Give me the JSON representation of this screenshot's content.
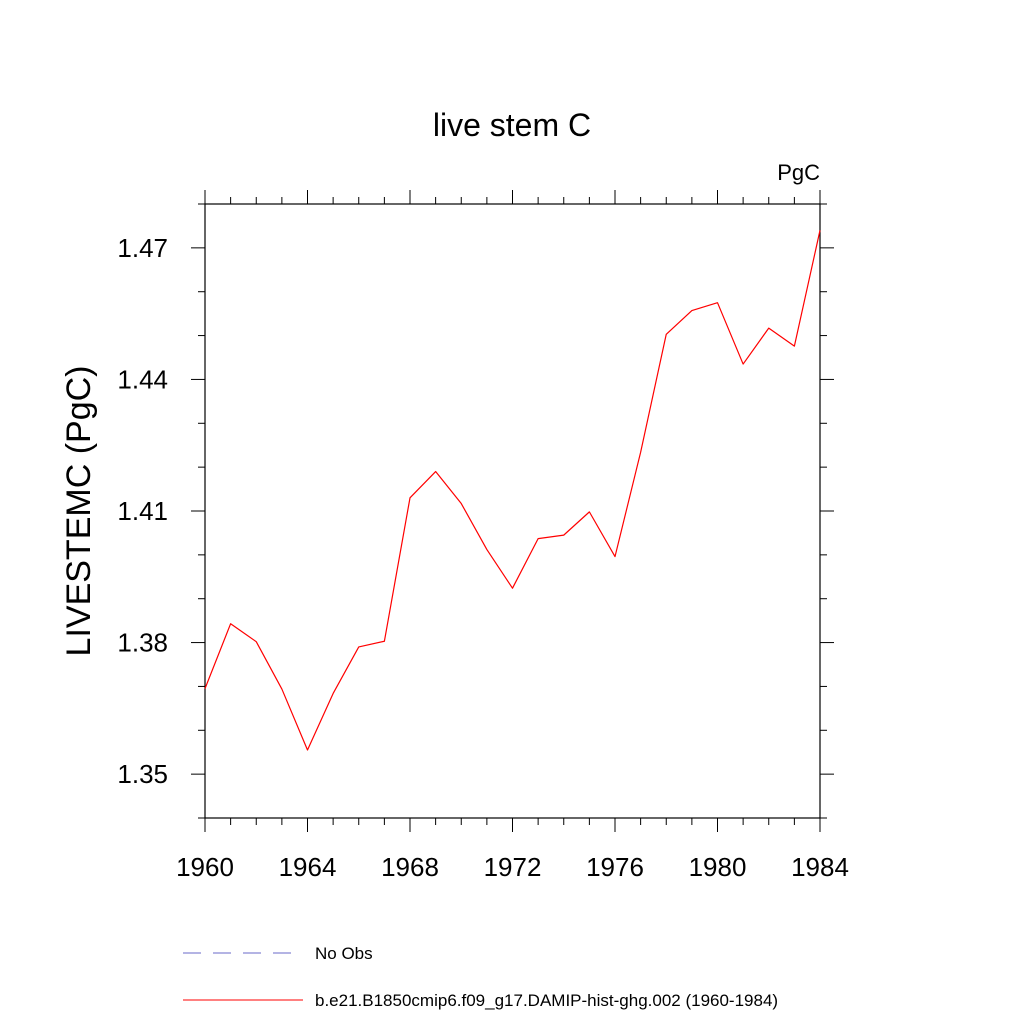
{
  "chart_data": {
    "type": "line",
    "title": "live stem C",
    "units_label": "PgC",
    "ylabel": "LIVESTEMC  (PgC)",
    "xlabel": "",
    "xlim": [
      1960,
      1984
    ],
    "ylim": [
      1.34,
      1.48
    ],
    "x_ticks": [
      1960,
      1964,
      1968,
      1972,
      1976,
      1980,
      1984
    ],
    "x_tick_labels": [
      "1960",
      "1964",
      "1968",
      "1972",
      "1976",
      "1980",
      "1984"
    ],
    "y_ticks": [
      1.35,
      1.38,
      1.41,
      1.44,
      1.47
    ],
    "y_tick_labels": [
      "1.35",
      "1.38",
      "1.41",
      "1.44",
      "1.47"
    ],
    "grid": false,
    "legend_position": "bottom",
    "series": [
      {
        "name": "b.e21.B1850cmip6.f09_g17.DAMIP-hist-ghg.002 (1960-1984)",
        "color": "#ff0000",
        "style": "solid",
        "x": [
          1960,
          1961,
          1962,
          1963,
          1964,
          1965,
          1966,
          1967,
          1968,
          1969,
          1970,
          1971,
          1972,
          1973,
          1974,
          1975,
          1976,
          1977,
          1978,
          1979,
          1980,
          1981,
          1982,
          1983,
          1984
        ],
        "y": [
          1.3695,
          1.3843,
          1.3802,
          1.3694,
          1.3555,
          1.3684,
          1.379,
          1.3803,
          1.413,
          1.419,
          1.4117,
          1.4012,
          1.3924,
          1.4037,
          1.4045,
          1.4098,
          1.3996,
          1.4234,
          1.4503,
          1.4557,
          1.4575,
          1.4435,
          1.4517,
          1.4476,
          1.474
        ]
      }
    ],
    "legend": [
      {
        "label": "No Obs",
        "color": "#6a6ac8",
        "style": "dashed"
      },
      {
        "label": "b.e21.B1850cmip6.f09_g17.DAMIP-hist-ghg.002 (1960-1984)",
        "color": "#ff0000",
        "style": "solid"
      }
    ]
  }
}
